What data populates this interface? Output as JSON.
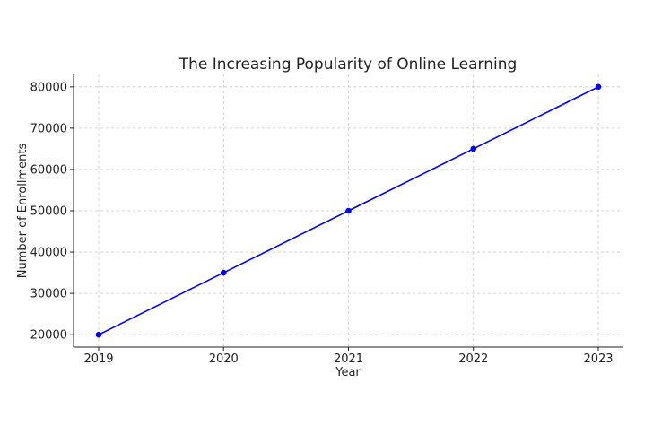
{
  "chart_data": {
    "type": "line",
    "title": "The Increasing Popularity of Online Learning",
    "xlabel": "Year",
    "ylabel": "Number of Enrollments",
    "x": [
      "2019",
      "2020",
      "2021",
      "2022",
      "2023"
    ],
    "series": [
      {
        "values": [
          20000,
          35000,
          50000,
          65000,
          80000
        ],
        "color": "#0000ff",
        "marker": "circle"
      }
    ],
    "yticks": [
      20000,
      30000,
      40000,
      50000,
      60000,
      70000,
      80000
    ],
    "ylim": [
      17000,
      83000
    ],
    "grid": true,
    "legend": "none"
  }
}
